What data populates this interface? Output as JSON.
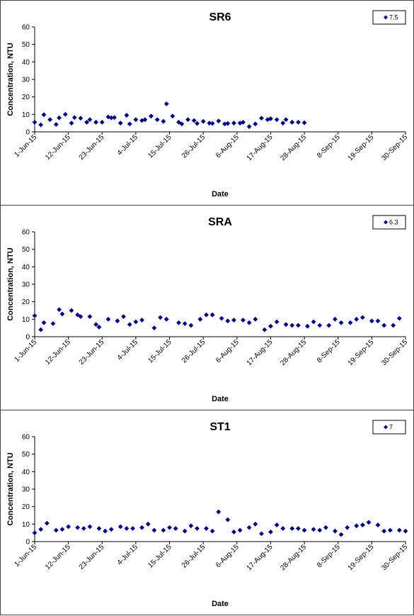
{
  "chart_data": [
    {
      "type": "scatter",
      "title": "SR6",
      "xlabel": "Date",
      "ylabel": "Concentration, NTU",
      "ylim": [
        0,
        60
      ],
      "yticks": [
        "0",
        "10",
        "20",
        "30",
        "40",
        "50",
        "60"
      ],
      "xlim": [
        "2015-06-01",
        "2015-09-30"
      ],
      "xticks": [
        "1-Jun-15",
        "12-Jun-15",
        "23-Jun-15",
        "4-Jul-15",
        "15-Jul-15",
        "26-Jul-15",
        "6-Aug-15",
        "17-Aug-15",
        "28-Aug-15",
        "8-Sep-15",
        "19-Sep-15",
        "30-Sep-15"
      ],
      "legend": {
        "label": "7.5",
        "position": "top-right"
      },
      "marker_color": "#000080",
      "grid": false,
      "series": [
        {
          "points": [
            [
              "2015-06-01",
              5.5
            ],
            [
              "2015-06-03",
              4
            ],
            [
              "2015-06-04",
              9.8
            ],
            [
              "2015-06-06",
              7
            ],
            [
              "2015-06-08",
              4.2
            ],
            [
              "2015-06-09",
              8
            ],
            [
              "2015-06-11",
              10
            ],
            [
              "2015-06-13",
              5
            ],
            [
              "2015-06-14",
              8.2
            ],
            [
              "2015-06-16",
              7.8
            ],
            [
              "2015-06-18",
              5.5
            ],
            [
              "2015-06-19",
              7
            ],
            [
              "2015-06-21",
              5.5
            ],
            [
              "2015-06-23",
              5.5
            ],
            [
              "2015-06-25",
              8.5
            ],
            [
              "2015-06-26",
              8
            ],
            [
              "2015-06-27",
              8.2
            ],
            [
              "2015-06-29",
              5
            ],
            [
              "2015-07-01",
              9.5
            ],
            [
              "2015-07-02",
              4.5
            ],
            [
              "2015-07-04",
              7
            ],
            [
              "2015-07-06",
              6.5
            ],
            [
              "2015-07-07",
              7
            ],
            [
              "2015-07-09",
              9
            ],
            [
              "2015-07-11",
              7
            ],
            [
              "2015-07-13",
              6
            ],
            [
              "2015-07-14",
              16
            ],
            [
              "2015-07-16",
              9
            ],
            [
              "2015-07-18",
              5.5
            ],
            [
              "2015-07-19",
              4.5
            ],
            [
              "2015-07-21",
              7
            ],
            [
              "2015-07-23",
              6.5
            ],
            [
              "2015-07-24",
              4.8
            ],
            [
              "2015-07-26",
              6
            ],
            [
              "2015-07-28",
              5
            ],
            [
              "2015-07-29",
              4.8
            ],
            [
              "2015-07-31",
              6.2
            ],
            [
              "2015-08-02",
              4.5
            ],
            [
              "2015-08-03",
              4.8
            ],
            [
              "2015-08-05",
              5
            ],
            [
              "2015-08-07",
              5
            ],
            [
              "2015-08-08",
              5.5
            ],
            [
              "2015-08-10",
              3
            ],
            [
              "2015-08-12",
              4.5
            ],
            [
              "2015-08-14",
              7.8
            ],
            [
              "2015-08-16",
              7
            ],
            [
              "2015-08-17",
              7.5
            ],
            [
              "2015-08-19",
              7
            ],
            [
              "2015-08-21",
              5
            ],
            [
              "2015-08-22",
              7
            ],
            [
              "2015-08-24",
              5.5
            ],
            [
              "2015-08-26",
              5.5
            ],
            [
              "2015-08-28",
              5.2
            ]
          ]
        }
      ]
    },
    {
      "type": "scatter",
      "title": "SRA",
      "xlabel": "Date",
      "ylabel": "Concentration, NTU",
      "ylim": [
        0,
        60
      ],
      "yticks": [
        "0",
        "10",
        "20",
        "30",
        "40",
        "50",
        "60"
      ],
      "xlim": [
        "2015-06-01",
        "2015-09-30"
      ],
      "xticks": [
        "1-Jun-15",
        "12-Jun-15",
        "23-Jun-15",
        "4-Jul-15",
        "15-Jul-15",
        "26-Jul-15",
        "6-Aug-15",
        "17-Aug-15",
        "28-Aug-15",
        "8-Sep-15",
        "19-Sep-15",
        "30-Sep-15"
      ],
      "legend": {
        "label": "6.3",
        "position": "top-right"
      },
      "marker_color": "#000080",
      "grid": false,
      "series": [
        {
          "points": [
            [
              "2015-06-01",
              12
            ],
            [
              "2015-06-03",
              4
            ],
            [
              "2015-06-04",
              8
            ],
            [
              "2015-06-07",
              7.5
            ],
            [
              "2015-06-09",
              15.5
            ],
            [
              "2015-06-10",
              13
            ],
            [
              "2015-06-13",
              15
            ],
            [
              "2015-06-15",
              12.5
            ],
            [
              "2015-06-16",
              11.5
            ],
            [
              "2015-06-19",
              11.5
            ],
            [
              "2015-06-21",
              7
            ],
            [
              "2015-06-22",
              5.5
            ],
            [
              "2015-06-25",
              10
            ],
            [
              "2015-06-28",
              9
            ],
            [
              "2015-06-30",
              11.5
            ],
            [
              "2015-07-02",
              7
            ],
            [
              "2015-07-04",
              8.5
            ],
            [
              "2015-07-06",
              9.5
            ],
            [
              "2015-07-10",
              5
            ],
            [
              "2015-07-12",
              11
            ],
            [
              "2015-07-14",
              10
            ],
            [
              "2015-07-18",
              8
            ],
            [
              "2015-07-20",
              7.5
            ],
            [
              "2015-07-22",
              6.5
            ],
            [
              "2015-07-25",
              10
            ],
            [
              "2015-07-27",
              12.5
            ],
            [
              "2015-07-29",
              12.5
            ],
            [
              "2015-08-01",
              10.5
            ],
            [
              "2015-08-03",
              9
            ],
            [
              "2015-08-05",
              9.5
            ],
            [
              "2015-08-08",
              9.5
            ],
            [
              "2015-08-10",
              8
            ],
            [
              "2015-08-12",
              10
            ],
            [
              "2015-08-15",
              4
            ],
            [
              "2015-08-17",
              6
            ],
            [
              "2015-08-19",
              8.5
            ],
            [
              "2015-08-22",
              7
            ],
            [
              "2015-08-24",
              6.5
            ],
            [
              "2015-08-26",
              6.5
            ],
            [
              "2015-08-29",
              6
            ],
            [
              "2015-08-31",
              8.5
            ],
            [
              "2015-09-02",
              6.5
            ],
            [
              "2015-09-05",
              6.5
            ],
            [
              "2015-09-07",
              10
            ],
            [
              "2015-09-09",
              8
            ],
            [
              "2015-09-12",
              8
            ],
            [
              "2015-09-14",
              10
            ],
            [
              "2015-09-16",
              11
            ],
            [
              "2015-09-19",
              9
            ],
            [
              "2015-09-21",
              9
            ],
            [
              "2015-09-23",
              6.5
            ],
            [
              "2015-09-26",
              6.5
            ],
            [
              "2015-09-28",
              10.5
            ]
          ]
        }
      ]
    },
    {
      "type": "scatter",
      "title": "ST1",
      "xlabel": "Date",
      "ylabel": "Concentration, NTU",
      "ylim": [
        0,
        60
      ],
      "yticks": [
        "0",
        "10",
        "20",
        "30",
        "40",
        "50",
        "60"
      ],
      "xlim": [
        "2015-06-01",
        "2015-09-30"
      ],
      "xticks": [
        "1-Jun-15",
        "12-Jun-15",
        "23-Jun-15",
        "4-Jul-15",
        "15-Jul-15",
        "26-Jul-15",
        "6-Aug-15",
        "17-Aug-15",
        "28-Aug-15",
        "8-Sep-15",
        "19-Sep-15",
        "30-Sep-15"
      ],
      "legend": {
        "label": "7",
        "position": "top-right"
      },
      "marker_color": "#000080",
      "grid": false,
      "series": [
        {
          "points": [
            [
              "2015-06-01",
              5
            ],
            [
              "2015-06-03",
              7
            ],
            [
              "2015-06-05",
              10.5
            ],
            [
              "2015-06-08",
              6.5
            ],
            [
              "2015-06-10",
              7
            ],
            [
              "2015-06-12",
              8.5
            ],
            [
              "2015-06-15",
              8
            ],
            [
              "2015-06-17",
              7.5
            ],
            [
              "2015-06-19",
              8.5
            ],
            [
              "2015-06-22",
              7.5
            ],
            [
              "2015-06-24",
              6
            ],
            [
              "2015-06-26",
              7
            ],
            [
              "2015-06-29",
              8.5
            ],
            [
              "2015-07-01",
              7.5
            ],
            [
              "2015-07-03",
              7.5
            ],
            [
              "2015-07-06",
              8
            ],
            [
              "2015-07-08",
              10
            ],
            [
              "2015-07-10",
              6.5
            ],
            [
              "2015-07-13",
              6.5
            ],
            [
              "2015-07-15",
              8
            ],
            [
              "2015-07-17",
              7.5
            ],
            [
              "2015-07-20",
              6
            ],
            [
              "2015-07-22",
              9
            ],
            [
              "2015-07-24",
              7.5
            ],
            [
              "2015-07-27",
              7.5
            ],
            [
              "2015-07-29",
              6
            ],
            [
              "2015-07-31",
              17
            ],
            [
              "2015-08-03",
              12.5
            ],
            [
              "2015-08-05",
              5.5
            ],
            [
              "2015-08-07",
              6.5
            ],
            [
              "2015-08-10",
              8
            ],
            [
              "2015-08-12",
              10
            ],
            [
              "2015-08-14",
              4.5
            ],
            [
              "2015-08-17",
              5.5
            ],
            [
              "2015-08-19",
              9.5
            ],
            [
              "2015-08-21",
              7.5
            ],
            [
              "2015-08-24",
              7.5
            ],
            [
              "2015-08-26",
              7.5
            ],
            [
              "2015-08-28",
              6.5
            ],
            [
              "2015-08-31",
              7
            ],
            [
              "2015-09-02",
              6.5
            ],
            [
              "2015-09-04",
              8
            ],
            [
              "2015-09-07",
              6
            ],
            [
              "2015-09-09",
              4
            ],
            [
              "2015-09-11",
              8
            ],
            [
              "2015-09-14",
              9
            ],
            [
              "2015-09-16",
              9.5
            ],
            [
              "2015-09-18",
              11
            ],
            [
              "2015-09-21",
              9.5
            ],
            [
              "2015-09-23",
              6
            ],
            [
              "2015-09-25",
              6.5
            ],
            [
              "2015-09-28",
              6.5
            ],
            [
              "2015-09-30",
              6
            ]
          ]
        }
      ]
    }
  ]
}
